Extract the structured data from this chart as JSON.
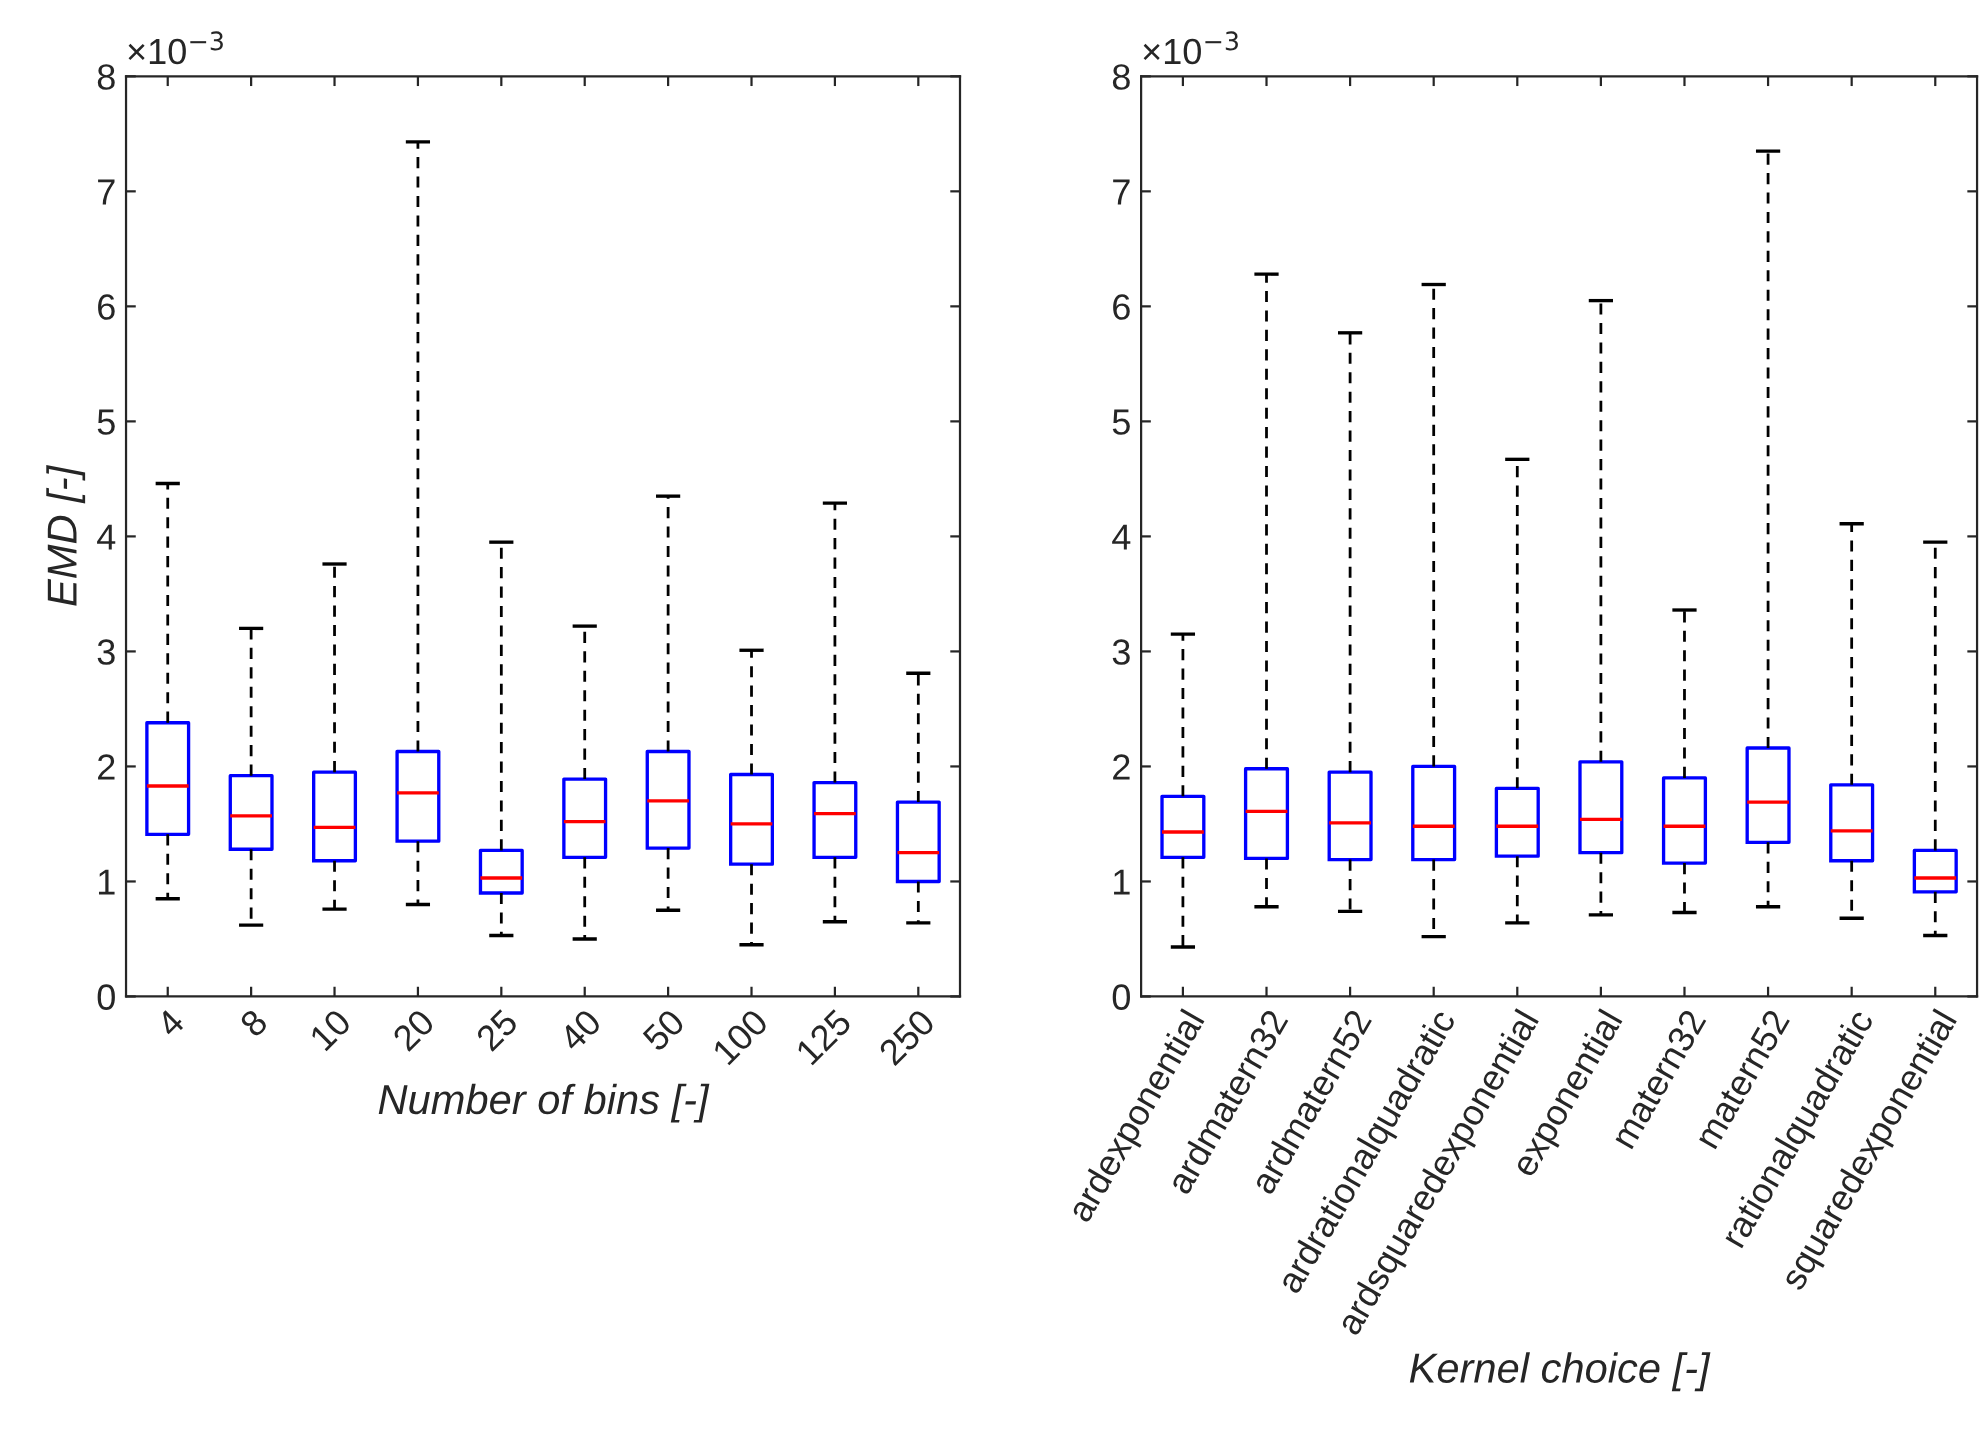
{
  "chart_data": [
    {
      "type": "box",
      "xlabel": "Number of bins [-]",
      "ylabel": "EMD [-]",
      "categories": [
        "4",
        "8",
        "10",
        "20",
        "25",
        "40",
        "50",
        "100",
        "125",
        "250"
      ],
      "boxes": [
        {
          "low": 0.85,
          "q1": 1.41,
          "median": 1.83,
          "q3": 2.38,
          "high": 4.46
        },
        {
          "low": 0.62,
          "q1": 1.28,
          "median": 1.57,
          "q3": 1.92,
          "high": 3.2
        },
        {
          "low": 0.76,
          "q1": 1.18,
          "median": 1.47,
          "q3": 1.95,
          "high": 3.76
        },
        {
          "low": 0.8,
          "q1": 1.35,
          "median": 1.77,
          "q3": 2.13,
          "high": 7.43
        },
        {
          "low": 0.53,
          "q1": 0.9,
          "median": 1.03,
          "q3": 1.27,
          "high": 3.95
        },
        {
          "low": 0.5,
          "q1": 1.21,
          "median": 1.52,
          "q3": 1.89,
          "high": 3.22
        },
        {
          "low": 0.75,
          "q1": 1.29,
          "median": 1.7,
          "q3": 2.13,
          "high": 4.35
        },
        {
          "low": 0.45,
          "q1": 1.15,
          "median": 1.5,
          "q3": 1.93,
          "high": 3.01
        },
        {
          "low": 0.65,
          "q1": 1.21,
          "median": 1.59,
          "q3": 1.86,
          "high": 4.29
        },
        {
          "low": 0.64,
          "q1": 1.0,
          "median": 1.25,
          "q3": 1.69,
          "high": 2.81
        }
      ],
      "color": "#0000ff",
      "ylim": [
        0,
        8
      ],
      "yticks": [
        0,
        1,
        2,
        3,
        4,
        5,
        6,
        7,
        8
      ],
      "grid": false,
      "annotations": [
        "×10$^{−3}$"
      ]
    },
    {
      "type": "box",
      "xlabel": "Kernel choice [-]",
      "categories": [
        "ardexponential",
        "ardmatern32",
        "ardmatern52",
        "ardrationalquadratic",
        "ardsquaredexponential",
        "exponential",
        "matern32",
        "matern52",
        "rationalquadratic",
        "squaredexponential"
      ],
      "boxes": [
        {
          "low": 0.43,
          "q1": 1.21,
          "median": 1.43,
          "q3": 1.74,
          "high": 3.15
        },
        {
          "low": 0.78,
          "q1": 1.2,
          "median": 1.61,
          "q3": 1.98,
          "high": 6.28
        },
        {
          "low": 0.74,
          "q1": 1.19,
          "median": 1.51,
          "q3": 1.95,
          "high": 5.77
        },
        {
          "low": 0.52,
          "q1": 1.19,
          "median": 1.48,
          "q3": 2.0,
          "high": 6.19
        },
        {
          "low": 0.64,
          "q1": 1.22,
          "median": 1.48,
          "q3": 1.81,
          "high": 4.67
        },
        {
          "low": 0.71,
          "q1": 1.25,
          "median": 1.54,
          "q3": 2.04,
          "high": 6.05
        },
        {
          "low": 0.73,
          "q1": 1.16,
          "median": 1.48,
          "q3": 1.9,
          "high": 3.36
        },
        {
          "low": 0.78,
          "q1": 1.34,
          "median": 1.69,
          "q3": 2.16,
          "high": 7.35
        },
        {
          "low": 0.68,
          "q1": 1.18,
          "median": 1.44,
          "q3": 1.84,
          "high": 4.11
        },
        {
          "low": 0.53,
          "q1": 0.91,
          "median": 1.03,
          "q3": 1.27,
          "high": 3.95
        }
      ],
      "color": "#0000ff",
      "ylim": [
        0,
        8
      ],
      "yticks": [
        0,
        1,
        2,
        3,
        4,
        5,
        6,
        7,
        8
      ],
      "grid": false,
      "annotations": [
        "×10$^{−3}$"
      ]
    }
  ]
}
